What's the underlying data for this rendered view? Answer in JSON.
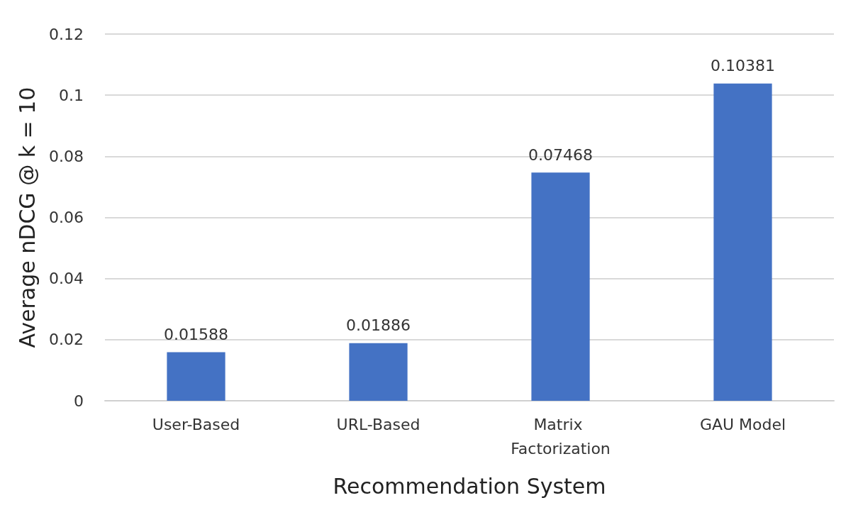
{
  "chart_data": {
    "type": "bar",
    "xlabel": "Recommendation System",
    "ylabel": "Average nDCG @ k = 10",
    "categories": [
      "User-Based",
      "URL-Based",
      "Matrix Factorization",
      "GAU Model"
    ],
    "values": [
      0.01588,
      0.01886,
      0.07468,
      0.10381
    ],
    "color": "#4472c4",
    "ylim": [
      0,
      0.12
    ],
    "yticks": [
      0,
      0.02,
      0.04,
      0.06,
      0.08,
      0.1,
      0.12
    ],
    "grid": "y",
    "data_labels": true
  }
}
